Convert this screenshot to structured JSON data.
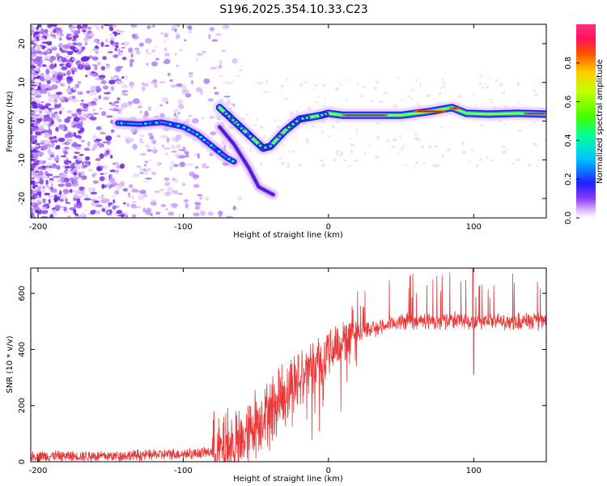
{
  "title": "S196.2025.354.10.33.C23",
  "chart_data": [
    {
      "type": "heatmap",
      "xlabel": "Height of straight line (km)",
      "ylabel": "Frequency (Hz)",
      "xlim": [
        -205,
        150
      ],
      "ylim": [
        -25,
        25
      ],
      "x_ticks": [
        -200,
        -100,
        0,
        100
      ],
      "y_ticks": [
        -20,
        -10,
        0,
        10,
        20
      ],
      "colorbar": {
        "label": "Normalized spectral amplitude",
        "range": [
          0,
          1
        ],
        "ticks": [
          0.0,
          0.2,
          0.4,
          0.6,
          0.8
        ]
      },
      "main_track": [
        {
          "x": -145,
          "y": -0.5
        },
        {
          "x": -130,
          "y": -0.8
        },
        {
          "x": -115,
          "y": -0.3
        },
        {
          "x": -100,
          "y": -1.5
        },
        {
          "x": -90,
          "y": -3.5
        },
        {
          "x": -80,
          "y": -6.5
        },
        {
          "x": -70,
          "y": -9.5
        },
        {
          "x": -65,
          "y": -10.5
        }
      ],
      "secondary_track": [
        {
          "x": -75,
          "y": 3.5
        },
        {
          "x": -65,
          "y": 0
        },
        {
          "x": -55,
          "y": -3.5
        },
        {
          "x": -45,
          "y": -7
        },
        {
          "x": -40,
          "y": -6.5
        },
        {
          "x": -30,
          "y": -2.5
        },
        {
          "x": -20,
          "y": 0.5
        },
        {
          "x": -5,
          "y": 1.5
        },
        {
          "x": 0,
          "y": 2
        },
        {
          "x": 10,
          "y": 1.5
        },
        {
          "x": 30,
          "y": 1.5
        },
        {
          "x": 50,
          "y": 1.5
        },
        {
          "x": 70,
          "y": 2.5
        },
        {
          "x": 85,
          "y": 3.5
        },
        {
          "x": 95,
          "y": 2
        },
        {
          "x": 110,
          "y": 1.8
        },
        {
          "x": 130,
          "y": 2
        },
        {
          "x": 150,
          "y": 1.8
        }
      ],
      "tail_track": [
        {
          "x": -75,
          "y": -1.5
        },
        {
          "x": -65,
          "y": -6
        },
        {
          "x": -55,
          "y": -12
        },
        {
          "x": -48,
          "y": -17
        },
        {
          "x": -38,
          "y": -19
        }
      ]
    },
    {
      "type": "line",
      "xlabel": "Height of straight line (km)",
      "ylabel": "SNR (10 * v/v)",
      "xlim": [
        -205,
        150
      ],
      "ylim": [
        0,
        690
      ],
      "x_ticks": [
        -200,
        -100,
        0,
        100
      ],
      "y_ticks": [
        0,
        200,
        400,
        600
      ],
      "series": [
        {
          "name": "SNR",
          "color": "#e83a3a",
          "envelope_x": [
            -205,
            -150,
            -120,
            -90,
            -75,
            -60,
            -50,
            -40,
            -30,
            -20,
            -10,
            0,
            10,
            20,
            35,
            50,
            70,
            90,
            100,
            110,
            130,
            150
          ],
          "envelope_y": [
            20,
            20,
            25,
            30,
            40,
            70,
            140,
            190,
            240,
            300,
            350,
            390,
            430,
            460,
            480,
            500,
            500,
            505,
            500,
            500,
            500,
            500
          ]
        }
      ]
    }
  ]
}
